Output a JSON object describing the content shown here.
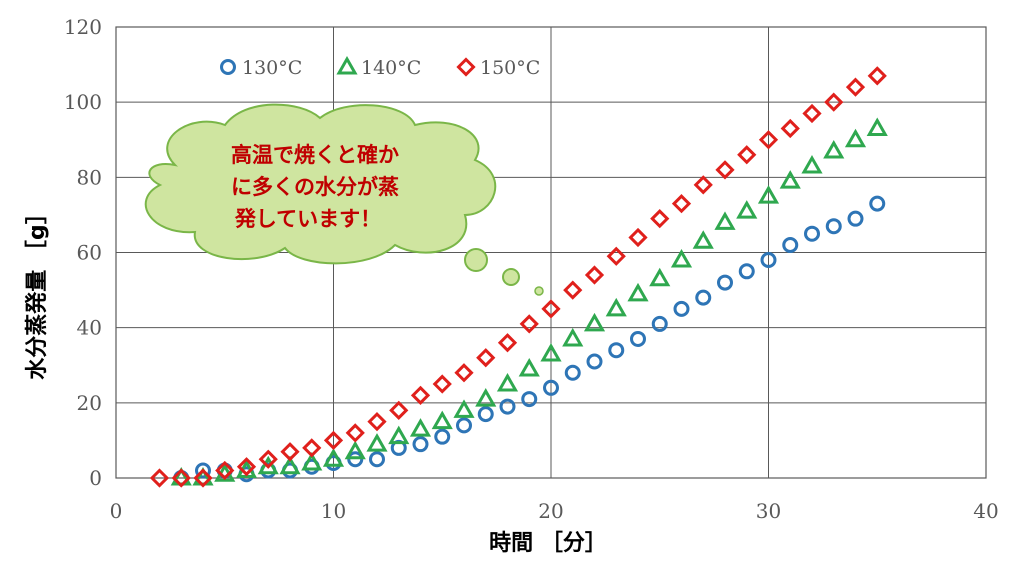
{
  "chart_data": {
    "type": "scatter",
    "xlabel": "時間 ［分］",
    "ylabel": "水分蒸発量 ［g］",
    "xlim": [
      0,
      40
    ],
    "ylim": [
      0,
      120
    ],
    "xticks": [
      0,
      10,
      20,
      30,
      40
    ],
    "yticks": [
      0,
      20,
      40,
      60,
      80,
      100,
      120
    ],
    "grid": true,
    "legend_position": "top-left",
    "series": [
      {
        "name": "130°C",
        "marker": "circle",
        "color": "#2e75b6",
        "x": [
          3,
          4,
          5,
          6,
          7,
          8,
          9,
          10,
          11,
          12,
          13,
          14,
          15,
          16,
          17,
          18,
          19,
          20,
          21,
          22,
          23,
          24,
          25,
          26,
          27,
          28,
          29,
          30,
          31,
          32,
          33,
          34,
          35
        ],
        "y": [
          0,
          2,
          2,
          1,
          2,
          2,
          3,
          4,
          5,
          5,
          8,
          9,
          11,
          14,
          17,
          19,
          21,
          24,
          28,
          31,
          34,
          37,
          41,
          45,
          48,
          52,
          55,
          58,
          62,
          65,
          67,
          69,
          73
        ]
      },
      {
        "name": "140°C",
        "marker": "triangle",
        "color": "#2fa84f",
        "x": [
          3,
          4,
          5,
          6,
          7,
          8,
          9,
          10,
          11,
          12,
          13,
          14,
          15,
          16,
          17,
          18,
          19,
          20,
          21,
          22,
          23,
          24,
          25,
          26,
          27,
          28,
          29,
          30,
          31,
          32,
          33,
          34,
          35
        ],
        "y": [
          0,
          0,
          1,
          2,
          3,
          3,
          4,
          5,
          7,
          9,
          11,
          13,
          15,
          18,
          21,
          25,
          29,
          33,
          37,
          41,
          45,
          49,
          53,
          58,
          63,
          68,
          71,
          75,
          79,
          83,
          87,
          90,
          93
        ]
      },
      {
        "name": "150°C",
        "marker": "diamond",
        "color": "#e0201c",
        "x": [
          2,
          3,
          4,
          5,
          6,
          7,
          8,
          9,
          10,
          11,
          12,
          13,
          14,
          15,
          16,
          17,
          18,
          19,
          20,
          21,
          22,
          23,
          24,
          25,
          26,
          27,
          28,
          29,
          30,
          31,
          32,
          33,
          34,
          35
        ],
        "y": [
          0,
          0,
          0,
          2,
          3,
          5,
          7,
          8,
          10,
          12,
          15,
          18,
          22,
          25,
          28,
          32,
          36,
          41,
          45,
          50,
          54,
          59,
          64,
          69,
          73,
          78,
          82,
          86,
          90,
          93,
          97,
          100,
          104,
          107
        ]
      }
    ],
    "annotation": {
      "lines": [
        "高温で焼くと確か",
        "に多くの水分が蒸",
        "発しています！"
      ],
      "fill": "#cfe5a0",
      "stroke": "#7ab648",
      "text_color": "#c00000"
    }
  }
}
